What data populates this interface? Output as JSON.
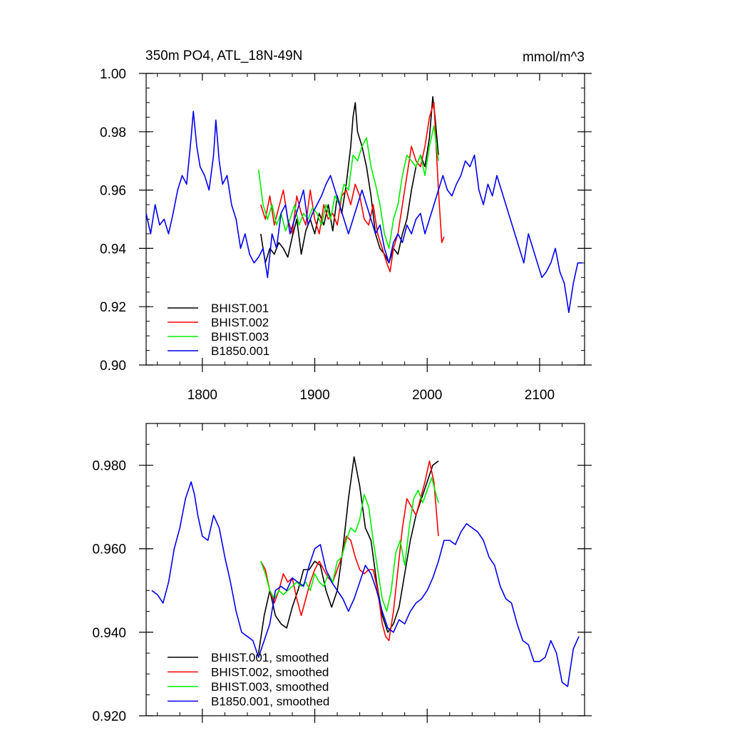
{
  "chart_data": [
    {
      "type": "line",
      "title": "350m PO4, ATL_18N-49N",
      "units": "mmol/m^3",
      "xlabel": "",
      "ylabel": "",
      "xlim": [
        1750,
        2140
      ],
      "ylim": [
        0.9,
        1.0
      ],
      "xticks": [
        1800,
        1900,
        2000,
        2100
      ],
      "xtick_labels": [
        "1800",
        "1900",
        "2000",
        "2100"
      ],
      "yticks": [
        0.9,
        0.92,
        0.94,
        0.96,
        0.98,
        1.0
      ],
      "ytick_labels": [
        "0.90",
        "0.92",
        "0.94",
        "0.96",
        "0.98",
        "1.00"
      ],
      "legend_position": "bottom-left",
      "series": [
        {
          "name": "BHIST.001",
          "color": "#000000",
          "x": [
            1852,
            1856,
            1860,
            1864,
            1868,
            1872,
            1876,
            1880,
            1884,
            1888,
            1892,
            1896,
            1900,
            1904,
            1908,
            1912,
            1916,
            1920,
            1924,
            1928,
            1932,
            1934,
            1936,
            1938,
            1942,
            1946,
            1950,
            1954,
            1958,
            1962,
            1966,
            1970,
            1974,
            1978,
            1982,
            1986,
            1990,
            1994,
            1998,
            2002,
            2005,
            2007,
            2010
          ],
          "y": [
            0.945,
            0.935,
            0.94,
            0.938,
            0.942,
            0.94,
            0.937,
            0.944,
            0.95,
            0.938,
            0.946,
            0.95,
            0.945,
            0.952,
            0.948,
            0.955,
            0.946,
            0.958,
            0.952,
            0.962,
            0.975,
            0.985,
            0.99,
            0.98,
            0.975,
            0.968,
            0.958,
            0.945,
            0.94,
            0.938,
            0.935,
            0.94,
            0.938,
            0.945,
            0.95,
            0.96,
            0.968,
            0.972,
            0.968,
            0.978,
            0.992,
            0.985,
            0.972
          ]
        },
        {
          "name": "BHIST.002",
          "color": "#ff0000",
          "x": [
            1852,
            1856,
            1860,
            1864,
            1868,
            1872,
            1876,
            1880,
            1884,
            1888,
            1892,
            1896,
            1900,
            1904,
            1908,
            1912,
            1916,
            1920,
            1924,
            1928,
            1932,
            1936,
            1940,
            1944,
            1948,
            1952,
            1956,
            1960,
            1964,
            1967,
            1970,
            1974,
            1978,
            1982,
            1986,
            1990,
            1994,
            1998,
            2002,
            2006,
            2010,
            2013,
            2015
          ],
          "y": [
            0.955,
            0.95,
            0.958,
            0.948,
            0.954,
            0.96,
            0.95,
            0.945,
            0.958,
            0.952,
            0.948,
            0.96,
            0.95,
            0.945,
            0.955,
            0.95,
            0.952,
            0.948,
            0.958,
            0.96,
            0.955,
            0.962,
            0.958,
            0.95,
            0.948,
            0.955,
            0.945,
            0.94,
            0.935,
            0.932,
            0.94,
            0.945,
            0.955,
            0.965,
            0.975,
            0.97,
            0.968,
            0.975,
            0.985,
            0.99,
            0.96,
            0.942,
            0.944
          ]
        },
        {
          "name": "BHIST.003",
          "color": "#00ee00",
          "x": [
            1850,
            1854,
            1858,
            1862,
            1866,
            1870,
            1874,
            1878,
            1882,
            1886,
            1890,
            1894,
            1898,
            1902,
            1906,
            1910,
            1914,
            1918,
            1922,
            1926,
            1930,
            1934,
            1938,
            1942,
            1946,
            1950,
            1954,
            1958,
            1962,
            1966,
            1970,
            1974,
            1978,
            1982,
            1986,
            1990,
            1994,
            1998,
            2002,
            2006,
            2010
          ],
          "y": [
            0.967,
            0.955,
            0.95,
            0.955,
            0.948,
            0.952,
            0.946,
            0.95,
            0.955,
            0.948,
            0.952,
            0.95,
            0.954,
            0.952,
            0.948,
            0.955,
            0.95,
            0.958,
            0.955,
            0.962,
            0.96,
            0.972,
            0.97,
            0.975,
            0.978,
            0.968,
            0.962,
            0.955,
            0.945,
            0.94,
            0.95,
            0.955,
            0.965,
            0.972,
            0.97,
            0.968,
            0.972,
            0.965,
            0.975,
            0.982,
            0.97
          ]
        },
        {
          "name": "B1850.001",
          "color": "#0000ee",
          "x": [
            1750,
            1754,
            1758,
            1762,
            1766,
            1770,
            1774,
            1778,
            1782,
            1786,
            1790,
            1792,
            1795,
            1798,
            1802,
            1806,
            1810,
            1812,
            1815,
            1818,
            1822,
            1826,
            1830,
            1834,
            1838,
            1842,
            1846,
            1850,
            1854,
            1858,
            1862,
            1866,
            1870,
            1874,
            1878,
            1882,
            1886,
            1890,
            1894,
            1898,
            1902,
            1906,
            1910,
            1914,
            1918,
            1922,
            1926,
            1930,
            1934,
            1938,
            1942,
            1946,
            1950,
            1954,
            1958,
            1962,
            1966,
            1970,
            1974,
            1978,
            1982,
            1986,
            1990,
            1994,
            1998,
            2002,
            2006,
            2010,
            2014,
            2018,
            2022,
            2026,
            2030,
            2034,
            2038,
            2042,
            2046,
            2050,
            2054,
            2058,
            2062,
            2066,
            2070,
            2074,
            2078,
            2082,
            2086,
            2090,
            2094,
            2098,
            2102,
            2106,
            2110,
            2114,
            2118,
            2122,
            2126,
            2130,
            2134,
            2138
          ],
          "y": [
            0.952,
            0.945,
            0.955,
            0.948,
            0.95,
            0.945,
            0.952,
            0.96,
            0.965,
            0.962,
            0.978,
            0.987,
            0.975,
            0.968,
            0.965,
            0.96,
            0.972,
            0.984,
            0.97,
            0.962,
            0.965,
            0.955,
            0.95,
            0.94,
            0.945,
            0.938,
            0.935,
            0.937,
            0.94,
            0.93,
            0.945,
            0.94,
            0.952,
            0.955,
            0.945,
            0.95,
            0.955,
            0.96,
            0.948,
            0.952,
            0.955,
            0.958,
            0.962,
            0.965,
            0.96,
            0.955,
            0.95,
            0.945,
            0.95,
            0.955,
            0.96,
            0.955,
            0.95,
            0.945,
            0.948,
            0.94,
            0.935,
            0.942,
            0.945,
            0.942,
            0.948,
            0.945,
            0.95,
            0.952,
            0.945,
            0.95,
            0.955,
            0.96,
            0.965,
            0.96,
            0.958,
            0.962,
            0.965,
            0.97,
            0.968,
            0.972,
            0.96,
            0.955,
            0.962,
            0.958,
            0.965,
            0.96,
            0.955,
            0.95,
            0.945,
            0.94,
            0.935,
            0.945,
            0.94,
            0.935,
            0.93,
            0.932,
            0.935,
            0.94,
            0.932,
            0.928,
            0.918,
            0.928,
            0.935,
            0.935
          ]
        }
      ]
    },
    {
      "type": "line",
      "title": "",
      "xlabel": "",
      "ylabel": "",
      "xlim": [
        1750,
        2140
      ],
      "ylim": [
        0.92,
        0.99
      ],
      "xticks": [
        1800,
        1900,
        2000,
        2100
      ],
      "xtick_labels": [],
      "yticks": [
        0.92,
        0.94,
        0.96,
        0.98
      ],
      "ytick_labels": [
        "0.920",
        "0.940",
        "0.960",
        "0.980"
      ],
      "legend_position": "bottom-left",
      "series": [
        {
          "name": "BHIST.001, smoothed",
          "color": "#000000",
          "x": [
            1850,
            1855,
            1860,
            1865,
            1870,
            1875,
            1880,
            1885,
            1890,
            1895,
            1900,
            1905,
            1910,
            1915,
            1920,
            1925,
            1930,
            1935,
            1940,
            1945,
            1950,
            1955,
            1960,
            1965,
            1970,
            1975,
            1980,
            1985,
            1990,
            1995,
            2000,
            2005,
            2010
          ],
          "y": [
            0.935,
            0.944,
            0.95,
            0.944,
            0.942,
            0.941,
            0.946,
            0.95,
            0.955,
            0.955,
            0.957,
            0.956,
            0.95,
            0.946,
            0.95,
            0.96,
            0.972,
            0.982,
            0.975,
            0.965,
            0.962,
            0.952,
            0.944,
            0.94,
            0.942,
            0.946,
            0.954,
            0.962,
            0.968,
            0.972,
            0.976,
            0.98,
            0.981
          ]
        },
        {
          "name": "BHIST.002, smoothed",
          "color": "#ff0000",
          "x": [
            1852,
            1856,
            1860,
            1864,
            1868,
            1872,
            1876,
            1880,
            1884,
            1888,
            1892,
            1896,
            1900,
            1904,
            1908,
            1912,
            1916,
            1920,
            1924,
            1928,
            1932,
            1936,
            1940,
            1944,
            1948,
            1952,
            1956,
            1960,
            1963,
            1966,
            1970,
            1974,
            1978,
            1982,
            1986,
            1990,
            1994,
            1998,
            2002,
            2006,
            2010
          ],
          "y": [
            0.957,
            0.955,
            0.95,
            0.947,
            0.95,
            0.954,
            0.952,
            0.953,
            0.948,
            0.944,
            0.948,
            0.952,
            0.955,
            0.957,
            0.955,
            0.953,
            0.952,
            0.955,
            0.958,
            0.963,
            0.962,
            0.958,
            0.955,
            0.954,
            0.955,
            0.955,
            0.95,
            0.942,
            0.939,
            0.938,
            0.945,
            0.955,
            0.965,
            0.972,
            0.97,
            0.968,
            0.972,
            0.976,
            0.981,
            0.976,
            0.963
          ]
        },
        {
          "name": "BHIST.003, smoothed",
          "color": "#00ee00",
          "x": [
            1852,
            1856,
            1860,
            1864,
            1868,
            1872,
            1876,
            1880,
            1884,
            1888,
            1892,
            1896,
            1900,
            1904,
            1908,
            1912,
            1916,
            1920,
            1924,
            1928,
            1932,
            1936,
            1940,
            1944,
            1948,
            1952,
            1956,
            1960,
            1964,
            1968,
            1972,
            1976,
            1980,
            1984,
            1988,
            1992,
            1996,
            2000,
            2004,
            2008,
            2010
          ],
          "y": [
            0.957,
            0.954,
            0.95,
            0.948,
            0.95,
            0.949,
            0.95,
            0.951,
            0.952,
            0.951,
            0.952,
            0.95,
            0.954,
            0.952,
            0.951,
            0.954,
            0.952,
            0.957,
            0.958,
            0.962,
            0.965,
            0.964,
            0.967,
            0.973,
            0.97,
            0.962,
            0.955,
            0.948,
            0.945,
            0.95,
            0.959,
            0.962,
            0.956,
            0.965,
            0.972,
            0.974,
            0.971,
            0.974,
            0.977,
            0.973,
            0.971
          ]
        },
        {
          "name": "B1850.001, smoothed",
          "color": "#0000ee",
          "x": [
            1755,
            1760,
            1765,
            1770,
            1775,
            1780,
            1785,
            1790,
            1793,
            1796,
            1800,
            1805,
            1810,
            1815,
            1820,
            1825,
            1830,
            1835,
            1840,
            1845,
            1850,
            1855,
            1860,
            1865,
            1870,
            1875,
            1880,
            1885,
            1890,
            1895,
            1900,
            1905,
            1910,
            1915,
            1920,
            1925,
            1930,
            1935,
            1940,
            1945,
            1950,
            1955,
            1960,
            1965,
            1970,
            1975,
            1980,
            1985,
            1990,
            1995,
            2000,
            2005,
            2010,
            2015,
            2020,
            2025,
            2030,
            2035,
            2040,
            2045,
            2050,
            2055,
            2060,
            2065,
            2070,
            2075,
            2080,
            2085,
            2090,
            2095,
            2100,
            2105,
            2110,
            2115,
            2120,
            2125,
            2130,
            2135
          ],
          "y": [
            0.95,
            0.949,
            0.947,
            0.952,
            0.96,
            0.965,
            0.972,
            0.976,
            0.973,
            0.968,
            0.963,
            0.962,
            0.968,
            0.965,
            0.958,
            0.952,
            0.945,
            0.94,
            0.939,
            0.938,
            0.934,
            0.938,
            0.942,
            0.95,
            0.951,
            0.95,
            0.953,
            0.952,
            0.951,
            0.956,
            0.96,
            0.961,
            0.955,
            0.952,
            0.95,
            0.948,
            0.945,
            0.948,
            0.952,
            0.956,
            0.954,
            0.95,
            0.945,
            0.941,
            0.94,
            0.943,
            0.942,
            0.945,
            0.947,
            0.948,
            0.95,
            0.953,
            0.957,
            0.962,
            0.962,
            0.961,
            0.964,
            0.966,
            0.965,
            0.964,
            0.962,
            0.958,
            0.956,
            0.951,
            0.948,
            0.947,
            0.942,
            0.938,
            0.937,
            0.933,
            0.933,
            0.934,
            0.938,
            0.935,
            0.928,
            0.927,
            0.936,
            0.939
          ]
        }
      ]
    }
  ]
}
